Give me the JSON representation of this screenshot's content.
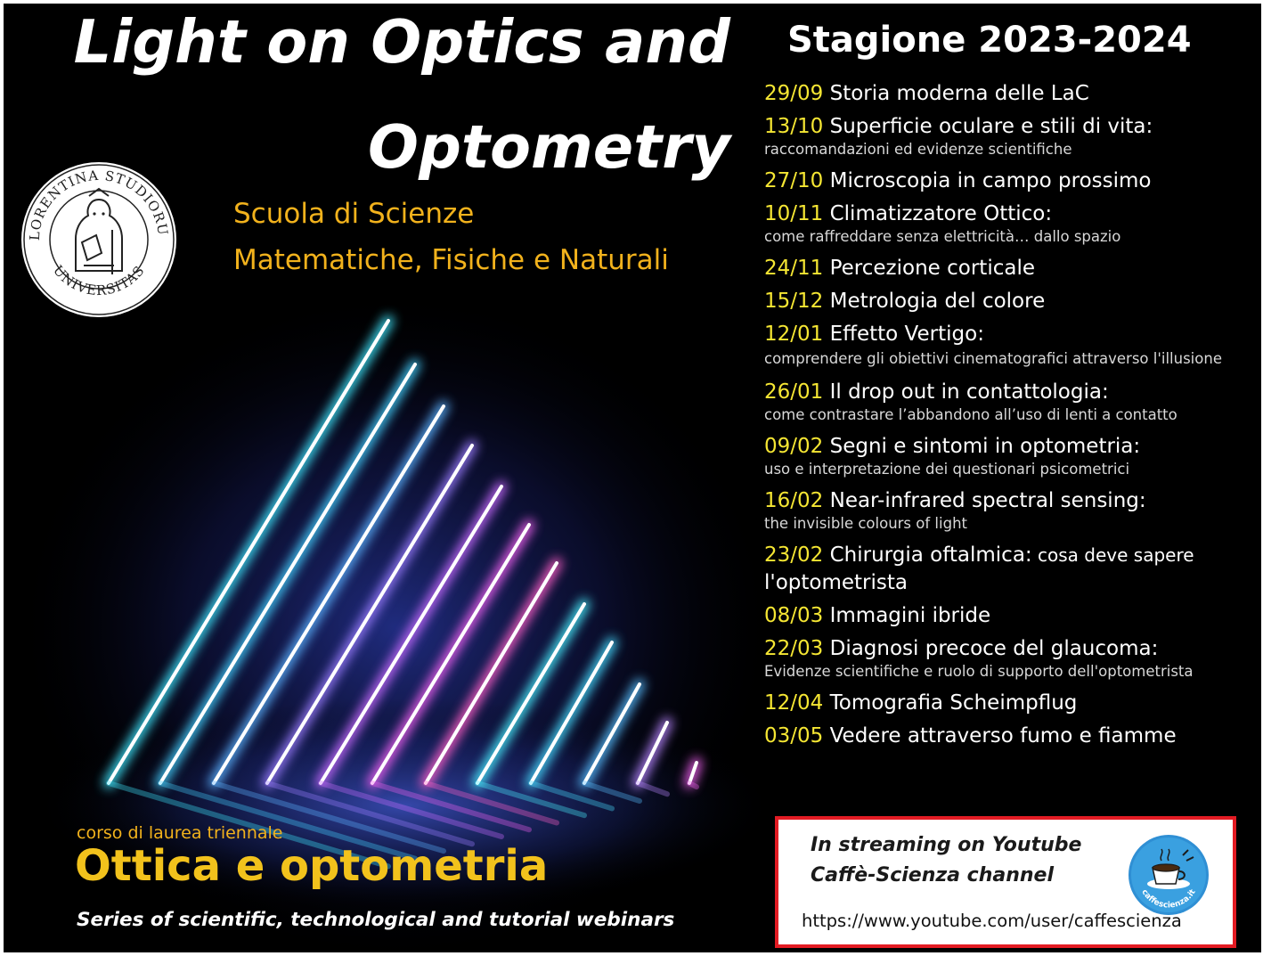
{
  "title": {
    "line1": "Light on Optics and",
    "line2": "Optometry"
  },
  "school": {
    "line1": "Scuola di Scienze",
    "line2": "Matematiche, Fisiche e Naturali"
  },
  "seal": {
    "text_top": "FLORENTINA STUDIORUM",
    "text_bottom": "UNIVERSITAS"
  },
  "season": "Stagione 2023-2024",
  "events": [
    {
      "date": "29/09",
      "title": "Storia moderna delle LaC"
    },
    {
      "date": "13/10",
      "title": "Superficie oculare e stili di vita:",
      "subtitle": "raccomandazioni ed evidenze scientifiche"
    },
    {
      "date": "27/10",
      "title": "Microscopia in campo prossimo"
    },
    {
      "date": "10/11",
      "title": "Climatizzatore Ottico:",
      "subtitle": "come raffreddare senza elettricità… dallo spazio"
    },
    {
      "date": "24/11",
      "title": "Percezione corticale"
    },
    {
      "date": "15/12",
      "title": "Metrologia del colore"
    },
    {
      "date": "12/01",
      "title": "Effetto Vertigo:",
      "subtitle": "comprendere gli obiettivi cinematografici attraverso l'illusione"
    },
    {
      "date": "26/01",
      "title": "Il drop out in contattologia:",
      "subtitle": "come contrastare l’abbandono all’uso di lenti a contatto"
    },
    {
      "date": "09/02",
      "title": "Segni e sintomi in optometria:",
      "subtitle": "uso e interpretazione dei questionari psicometrici"
    },
    {
      "date": "16/02",
      "title": "Near-infrared spectral sensing:",
      "subtitle": "the invisible colours of light"
    },
    {
      "date": "23/02",
      "title": " Chirurgia oftalmica:",
      "inline": " cosa deve sapere",
      "continuation": "l'optometrista"
    },
    {
      "date": "08/03",
      "title": "Immagini ibride"
    },
    {
      "date": "22/03",
      "title": "Diagnosi precoce del glaucoma:",
      "subtitle": "Evidenze scientifiche e ruolo di supporto dell'optometrista"
    },
    {
      "date": "12/04",
      "title": "Tomografia Scheimpflug"
    },
    {
      "date": "03/05",
      "title": "Vedere attraverso fumo e fiamme"
    }
  ],
  "degree": {
    "label": "corso di laurea triennale",
    "name": "Ottica e optometria"
  },
  "series": "Series of scientific, technological and tutorial webinars",
  "streaming": {
    "line1": "In streaming on Youtube",
    "line2": "Caffè-Scienza channel",
    "url": "https://www.youtube.com/user/caffescienza",
    "logo_text": "caffescienza.it"
  },
  "colors": {
    "title": "#ffffff",
    "accent": "#f2b21c",
    "date": "#f5e633",
    "border": "#e31b23",
    "background": "#000000"
  },
  "icons": {
    "seal": "university-seal-icon",
    "logo": "coffee-cup-icon"
  }
}
